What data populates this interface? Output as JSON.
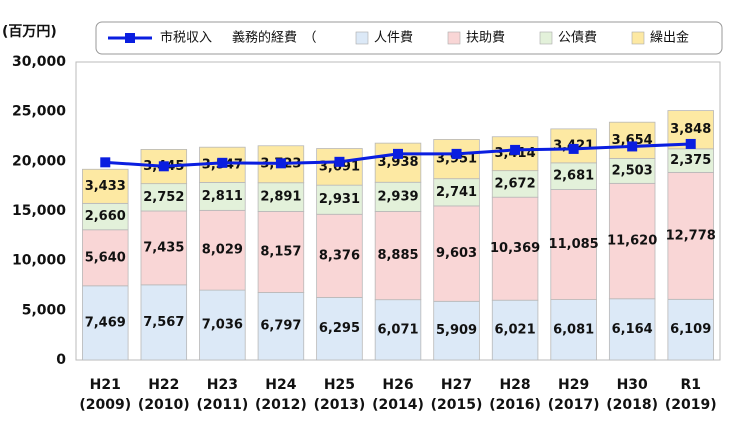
{
  "chart_data": {
    "type": "bar",
    "stacked": true,
    "y_label": "(百万円)",
    "legend_note": "義務的経費　（",
    "categories": [
      "H21\n(2009)",
      "H22\n(2010)",
      "H23\n(2011)",
      "H24\n(2012)",
      "H25\n(2013)",
      "H26\n(2014)",
      "H27\n(2015)",
      "H28\n(2016)",
      "H29\n(2017)",
      "H30\n(2018)",
      "R1\n(2019)"
    ],
    "ylim": [
      0,
      30000
    ],
    "yticks": [
      {
        "value": 0,
        "label": "0"
      },
      {
        "value": 5000,
        "label": "5,000"
      },
      {
        "value": 10000,
        "label": "10,000"
      },
      {
        "value": 15000,
        "label": "15,000"
      },
      {
        "value": 20000,
        "label": "20,000"
      },
      {
        "value": 25000,
        "label": "25,000"
      },
      {
        "value": 30000,
        "label": "30,000"
      }
    ],
    "grid": false,
    "series": [
      {
        "name": "人件費",
        "color": "#dce9f7",
        "values": [
          7469,
          7567,
          7036,
          6797,
          6295,
          6071,
          5909,
          6021,
          6081,
          6164,
          6109
        ],
        "value_labels": [
          "7,469",
          "7,567",
          "7,036",
          "6,797",
          "6,295",
          "6,071",
          "5,909",
          "6,021",
          "6,081",
          "6,164",
          "6,109"
        ]
      },
      {
        "name": "扶助費",
        "color": "#f9d6d6",
        "values": [
          5640,
          7435,
          8029,
          8157,
          8376,
          8885,
          9603,
          10369,
          11085,
          11620,
          12778
        ],
        "value_labels": [
          "5,640",
          "7,435",
          "8,029",
          "8,157",
          "8,376",
          "8,885",
          "9,603",
          "10,369",
          "11,085",
          "11,620",
          "12,778"
        ]
      },
      {
        "name": "公債費",
        "color": "#e3f1da",
        "values": [
          2660,
          2752,
          2811,
          2891,
          2931,
          2939,
          2741,
          2672,
          2681,
          2503,
          2375
        ],
        "value_labels": [
          "2,660",
          "2,752",
          "2,811",
          "2,891",
          "2,931",
          "2,939",
          "2,741",
          "2,672",
          "2,681",
          "2,503",
          "2,375"
        ]
      },
      {
        "name": "繰出金",
        "color": "#fde9a3",
        "values": [
          3433,
          3445,
          3547,
          3723,
          3691,
          3938,
          3951,
          3414,
          3421,
          3654,
          3848
        ],
        "value_labels": [
          "3,433",
          "3,445",
          "3,547",
          "3,723",
          "3,691",
          "3,938",
          "3,951",
          "3,414",
          "3,421",
          "3,654",
          "3,848"
        ]
      },
      {
        "name": "市税収入",
        "type": "line",
        "color": "#0a1ee0",
        "values": [
          19900,
          19500,
          19850,
          19800,
          19950,
          20750,
          20750,
          21150,
          21250,
          21500,
          21750
        ]
      }
    ]
  }
}
